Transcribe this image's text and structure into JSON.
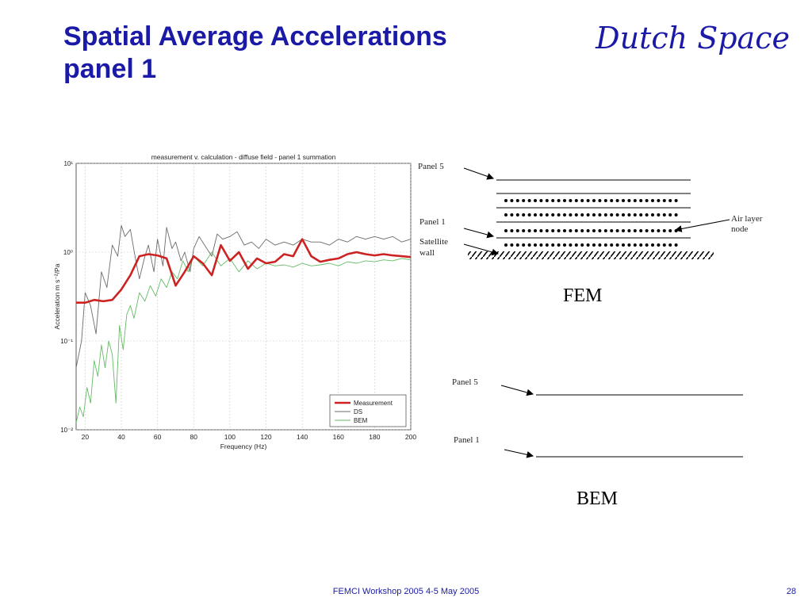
{
  "slide": {
    "title_lines": [
      "Spatial Average Accelerations",
      "panel 1"
    ],
    "brand": "Dutch Space",
    "footer": "FEMCI Workshop 2005 4-5  May 2005",
    "page_number": "28"
  },
  "chart_data": {
    "type": "line",
    "title": "measurement v. calculation - diffuse field - panel 1 summation",
    "xlabel": "Frequency (Hz)",
    "ylabel": "Acceleration m s⁻²/Pa",
    "xlim": [
      15,
      200
    ],
    "ylim": [
      0.01,
      10
    ],
    "yscale": "log",
    "x_ticks": [
      20,
      40,
      60,
      80,
      100,
      120,
      140,
      160,
      180,
      200
    ],
    "y_ticks": [
      {
        "value": 0.01,
        "label": "10⁻²"
      },
      {
        "value": 0.1,
        "label": "10⁻¹"
      },
      {
        "value": 1,
        "label": "10⁰"
      },
      {
        "value": 10,
        "label": "10¹"
      }
    ],
    "grid": true,
    "legend_position": "bottom-right",
    "series": [
      {
        "name": "Measurement",
        "color": "#cc2222",
        "x": [
          15,
          20,
          25,
          30,
          35,
          40,
          45,
          50,
          55,
          60,
          65,
          70,
          75,
          80,
          85,
          90,
          95,
          100,
          105,
          110,
          115,
          120,
          125,
          130,
          135,
          140,
          145,
          150,
          155,
          160,
          165,
          170,
          175,
          180,
          185,
          190,
          195,
          200
        ],
        "values": [
          0.27,
          0.27,
          0.29,
          0.28,
          0.29,
          0.38,
          0.55,
          0.9,
          0.95,
          0.92,
          0.85,
          0.42,
          0.6,
          0.9,
          0.75,
          0.55,
          1.2,
          0.8,
          1.0,
          0.65,
          0.85,
          0.75,
          0.78,
          0.95,
          0.9,
          1.4,
          0.9,
          0.78,
          0.82,
          0.85,
          0.95,
          1.0,
          0.95,
          0.92,
          0.95,
          0.92,
          0.9,
          0.88
        ]
      },
      {
        "name": "DS",
        "color": "#6b6b6b",
        "x": [
          15,
          18,
          20,
          23,
          26,
          29,
          32,
          35,
          38,
          40,
          42,
          45,
          48,
          50,
          53,
          55,
          58,
          60,
          63,
          65,
          68,
          70,
          73,
          75,
          78,
          80,
          83,
          86,
          90,
          93,
          96,
          100,
          104,
          108,
          112,
          116,
          120,
          125,
          130,
          135,
          140,
          145,
          150,
          155,
          160,
          165,
          170,
          175,
          180,
          185,
          190,
          195,
          200
        ],
        "values": [
          0.05,
          0.1,
          0.35,
          0.25,
          0.12,
          0.6,
          0.4,
          1.2,
          0.9,
          2.0,
          1.5,
          1.8,
          0.8,
          0.5,
          0.9,
          1.2,
          0.6,
          1.4,
          0.7,
          1.9,
          1.1,
          1.3,
          0.8,
          1.0,
          0.6,
          1.1,
          1.5,
          1.2,
          0.9,
          1.6,
          1.4,
          1.5,
          1.7,
          1.2,
          1.3,
          1.1,
          1.4,
          1.2,
          1.3,
          1.2,
          1.4,
          1.3,
          1.3,
          1.2,
          1.4,
          1.3,
          1.5,
          1.4,
          1.5,
          1.4,
          1.5,
          1.3,
          1.4
        ]
      },
      {
        "name": "BEM",
        "color": "#66bb66",
        "x": [
          15,
          17,
          19,
          21,
          23,
          25,
          27,
          29,
          31,
          33,
          35,
          37,
          39,
          41,
          43,
          45,
          47,
          50,
          53,
          56,
          59,
          62,
          65,
          68,
          71,
          74,
          77,
          80,
          85,
          90,
          95,
          100,
          105,
          110,
          115,
          120,
          125,
          130,
          135,
          140,
          145,
          150,
          155,
          160,
          165,
          170,
          175,
          180,
          185,
          190,
          195,
          200
        ],
        "values": [
          0.012,
          0.018,
          0.014,
          0.03,
          0.02,
          0.06,
          0.04,
          0.09,
          0.05,
          0.1,
          0.07,
          0.02,
          0.15,
          0.08,
          0.2,
          0.25,
          0.18,
          0.35,
          0.28,
          0.42,
          0.32,
          0.5,
          0.4,
          0.6,
          0.5,
          0.8,
          0.6,
          0.9,
          0.7,
          1.0,
          0.7,
          0.85,
          0.6,
          0.8,
          0.65,
          0.75,
          0.7,
          0.72,
          0.68,
          0.75,
          0.7,
          0.72,
          0.75,
          0.7,
          0.78,
          0.75,
          0.8,
          0.78,
          0.82,
          0.8,
          0.85,
          0.82
        ]
      }
    ]
  },
  "fem": {
    "caption": "FEM",
    "panel5_label": "Panel 5",
    "panel1_label": "Panel 1",
    "wall_label_lines": [
      "Satellite",
      "wall"
    ],
    "air_label_lines": [
      "Air layer",
      "node"
    ]
  },
  "bem": {
    "caption": "BEM",
    "panel5_label": "Panel 5",
    "panel1_label": "Panel 1"
  }
}
